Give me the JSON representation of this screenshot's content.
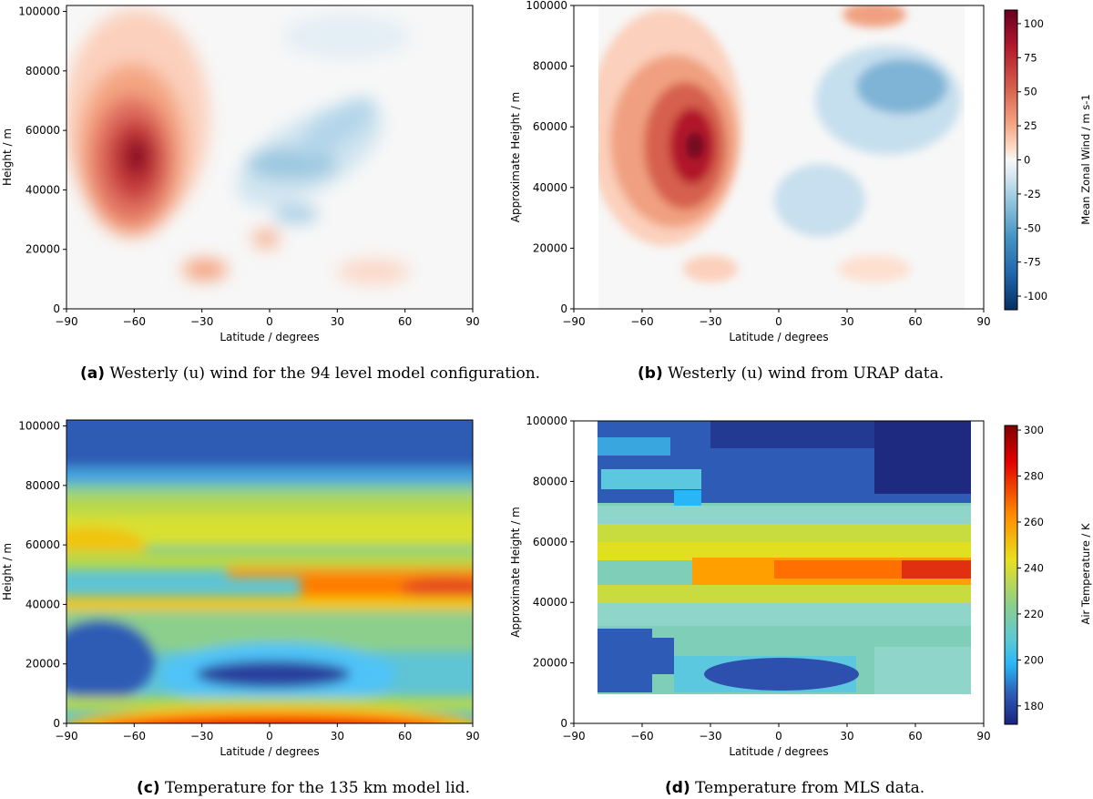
{
  "chart_data": [
    {
      "id": "a",
      "type": "heatmap",
      "title": "",
      "xlabel": "Latitude / degrees",
      "ylabel": "Height / m",
      "xlim": [
        -90,
        90
      ],
      "ylim": [
        0,
        102000
      ],
      "xticks": [
        "−90",
        "−60",
        "−30",
        "0",
        "30",
        "60",
        "90"
      ],
      "yticks": [
        "0",
        "20000",
        "40000",
        "60000",
        "80000",
        "100000"
      ],
      "colorbar_label": "Mean Zonal Wind / m s-1",
      "vmin": -110,
      "vmax": 110,
      "features": [
        {
          "lat": -58,
          "height": 50000,
          "value": 105
        },
        {
          "lat": 20,
          "height": 48000,
          "value": -35
        },
        {
          "lat": 35,
          "height": 62000,
          "value": -25
        },
        {
          "lat": -30,
          "height": 12000,
          "value": 30
        },
        {
          "lat": 45,
          "height": 12000,
          "value": 15
        }
      ]
    },
    {
      "id": "b",
      "type": "heatmap",
      "title": "",
      "xlabel": "Latitude / degrees",
      "ylabel": "Approximate Height / m",
      "xlim": [
        -90,
        90
      ],
      "ylim": [
        0,
        100000
      ],
      "data_lat_range": [
        -80,
        80
      ],
      "xticks": [
        "−90",
        "−60",
        "−30",
        "0",
        "30",
        "60",
        "90"
      ],
      "yticks": [
        "0",
        "20000",
        "40000",
        "60000",
        "80000",
        "100000"
      ],
      "colorbar_label": "Mean Zonal Wind / m s-1",
      "colorbar_ticks": [
        "100",
        "75",
        "50",
        "25",
        "0",
        "-25",
        "-50",
        "-75",
        "-100"
      ],
      "vmin": -110,
      "vmax": 110,
      "features": [
        {
          "lat": -40,
          "height": 52000,
          "value": 105
        },
        {
          "lat": 60,
          "height": 72000,
          "value": -55
        },
        {
          "lat": 20,
          "height": 30000,
          "value": -20
        },
        {
          "lat": 40,
          "height": 97000,
          "value": 45
        }
      ]
    },
    {
      "id": "c",
      "type": "heatmap",
      "title": "",
      "xlabel": "Latitude / degrees",
      "ylabel": "Height / m",
      "xlim": [
        -90,
        90
      ],
      "ylim": [
        0,
        102000
      ],
      "xticks": [
        "−90",
        "−60",
        "−30",
        "0",
        "30",
        "60",
        "90"
      ],
      "yticks": [
        "0",
        "20000",
        "40000",
        "60000",
        "80000",
        "100000"
      ],
      "colorbar_label": "Air Temperature / K",
      "vmin": 172,
      "vmax": 302,
      "features": [
        {
          "lat": 0,
          "height": 0,
          "value": 300
        },
        {
          "lat": 0,
          "height": 17000,
          "value": 190
        },
        {
          "lat": 80,
          "height": 48000,
          "value": 275
        },
        {
          "lat": -80,
          "height": 90000,
          "value": 195
        }
      ]
    },
    {
      "id": "d",
      "type": "heatmap",
      "title": "",
      "xlabel": "Latitude / degrees",
      "ylabel": "Approximate Height / m",
      "xlim": [
        -90,
        90
      ],
      "ylim": [
        0,
        100000
      ],
      "data_lat_range": [
        -82,
        82
      ],
      "data_height_range": [
        10000,
        100000
      ],
      "xticks": [
        "−90",
        "−60",
        "−30",
        "0",
        "30",
        "60",
        "90"
      ],
      "yticks": [
        "0",
        "20000",
        "40000",
        "60000",
        "80000",
        "100000"
      ],
      "colorbar_label": "Air Temperature / K",
      "colorbar_ticks": [
        "300",
        "280",
        "260",
        "240",
        "220",
        "200",
        "180"
      ],
      "vmin": 172,
      "vmax": 302,
      "features": [
        {
          "lat": 80,
          "height": 50000,
          "value": 285
        },
        {
          "lat": 0,
          "height": 20000,
          "value": 190
        },
        {
          "lat": 80,
          "height": 90000,
          "value": 180
        },
        {
          "lat": -75,
          "height": 25000,
          "value": 192
        }
      ]
    }
  ],
  "captions": [
    {
      "letter": "(a)",
      "text": " Westerly (u) wind for the 94 level model configuration."
    },
    {
      "letter": "(b)",
      "text": " Westerly (u) wind from URAP data."
    },
    {
      "letter": "(c)",
      "text": " Temperature for the 135 km model lid."
    },
    {
      "letter": "(d)",
      "text": " Temperature from MLS data."
    }
  ]
}
